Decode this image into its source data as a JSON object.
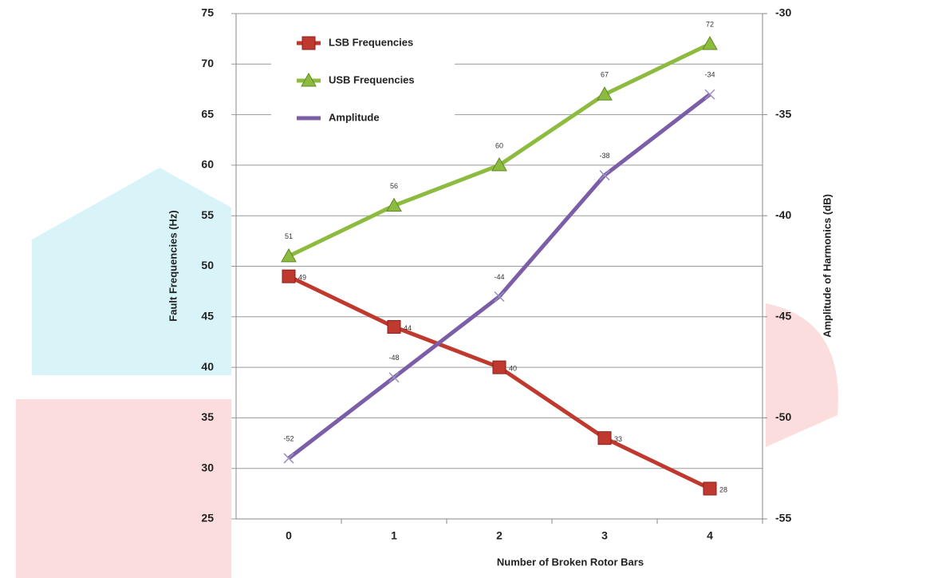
{
  "chart_data": {
    "type": "line",
    "categories": [
      "0",
      "1",
      "2",
      "3",
      "4"
    ],
    "x_label": "Number of Broken Rotor Bars",
    "y_label": "Fault Frequencies (Hz)",
    "y2_label": "Amplitude of Harmonics (dB)",
    "ylim": [
      25,
      75
    ],
    "yticks": [
      25,
      30,
      35,
      40,
      45,
      50,
      55,
      60,
      65,
      70,
      75
    ],
    "y2lim": [
      -55,
      -30
    ],
    "y2ticks": [
      -55,
      -50,
      -45,
      -40,
      -35,
      -30
    ],
    "grid": true,
    "legend": "upper left",
    "series": [
      {
        "name": "LSB Frequencies",
        "color": "#c0392f",
        "marker": "square",
        "values": [
          49,
          44,
          40,
          33,
          28
        ]
      },
      {
        "name": "USB Frequencies",
        "color": "#8dbb3f",
        "marker": "triangle",
        "values": [
          51,
          56,
          60,
          67,
          72
        ]
      },
      {
        "name": "Amplitude",
        "color": "#7b5ea7",
        "marker": "x",
        "axis": "y2",
        "values": [
          -52,
          -48,
          -44,
          -38,
          -34
        ]
      }
    ]
  }
}
